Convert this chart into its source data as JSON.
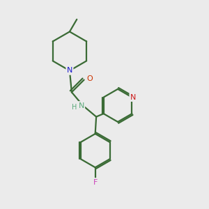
{
  "background_color": "#ebebeb",
  "bond_color": "#3a6b35",
  "atom_colors": {
    "N_piperidine": "#1a1acc",
    "N_amide": "#5aaa7a",
    "N_pyridine": "#cc1a1a",
    "O": "#cc3300",
    "F": "#cc44bb",
    "H": "#5aaa7a"
  },
  "line_width": 1.6,
  "figsize": [
    3.0,
    3.0
  ],
  "dpi": 100,
  "xlim": [
    0,
    10
  ],
  "ylim": [
    0,
    10
  ]
}
